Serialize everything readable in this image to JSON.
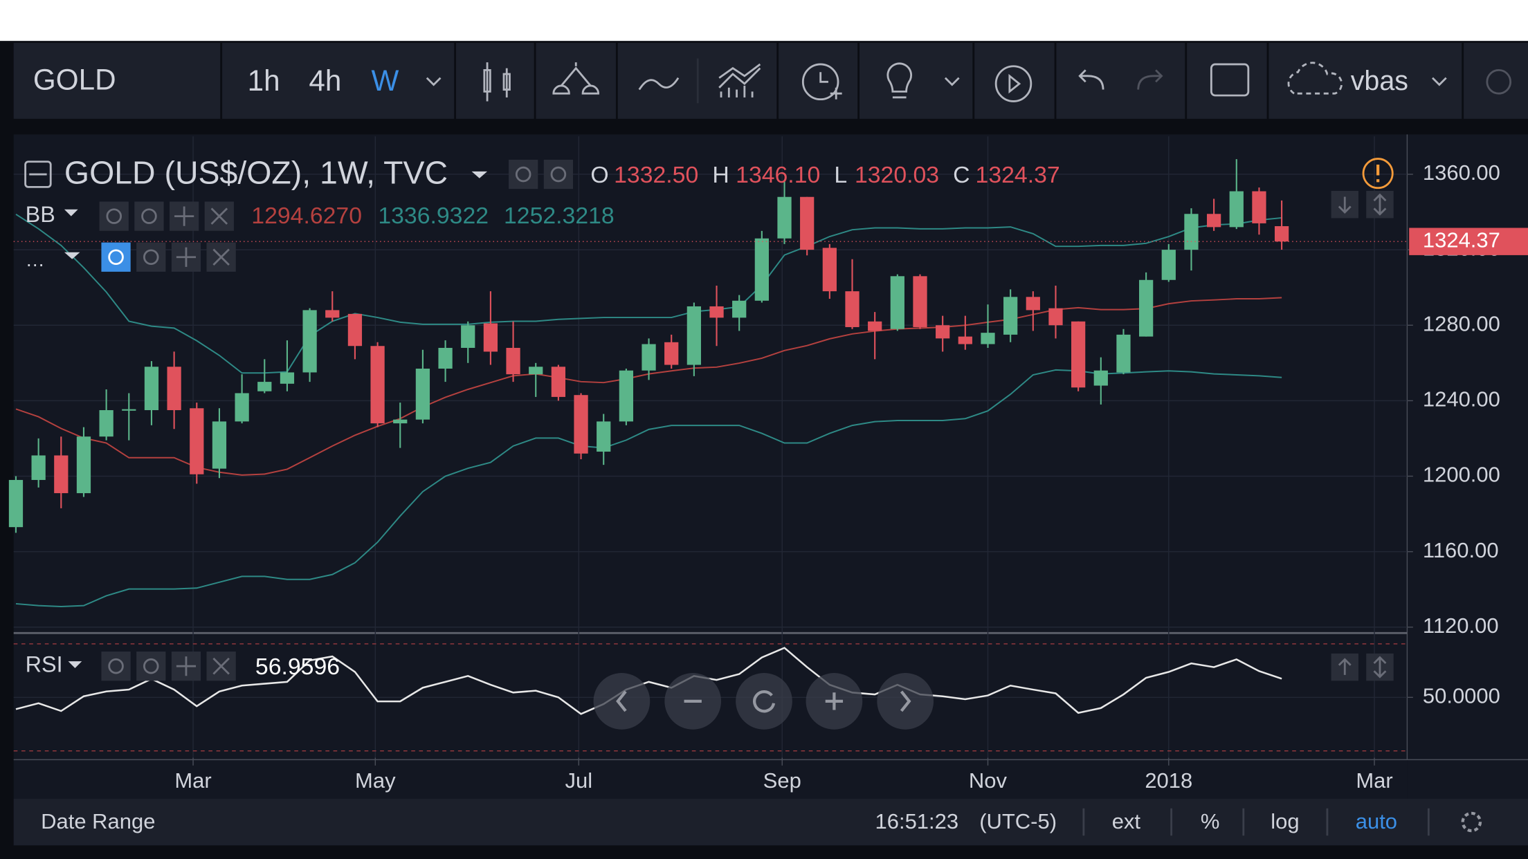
{
  "toolbar": {
    "symbol": "GOLD",
    "intervals": [
      "1h",
      "4h",
      "W"
    ],
    "layout_name": "vbas"
  },
  "footer": {
    "date_range": "Date Range",
    "time": "16:51:23",
    "timezone": "(UTC-5)",
    "ext": "ext",
    "percent": "%",
    "log": "log",
    "auto": "auto"
  },
  "chart_data": [
    {
      "type": "candlestick",
      "title": "GOLD (US$/OZ), 1W, TVC",
      "ohlc_legend": [
        {
          "key": "O",
          "value": "1332.50"
        },
        {
          "key": "H",
          "value": "1346.10"
        },
        {
          "key": "L",
          "value": "1320.03"
        },
        {
          "key": "C",
          "value": "1324.37"
        }
      ],
      "last_price_label": "1324.37",
      "up_color": "#5bb58a",
      "down_color": "#e0525c",
      "x": [
        0,
        1,
        2,
        3,
        4,
        5,
        6,
        7,
        8,
        9,
        10,
        11,
        12,
        13,
        14,
        15,
        16,
        17,
        18,
        19,
        20,
        21,
        22,
        23,
        24,
        25,
        26,
        27,
        28,
        29,
        30,
        31,
        32,
        33,
        34,
        35,
        36,
        37,
        38,
        39,
        40,
        41,
        42,
        43,
        44,
        45,
        46,
        47,
        48,
        49,
        50,
        51,
        52,
        53,
        54,
        55,
        56
      ],
      "open": [
        1173,
        1198,
        1211,
        1191,
        1221,
        1235,
        1235,
        1258,
        1236,
        1204,
        1229,
        1245,
        1249,
        1255,
        1288,
        1286,
        1269,
        1228,
        1230,
        1257,
        1268,
        1281,
        1268,
        1254,
        1258,
        1243,
        1213,
        1229,
        1256,
        1271,
        1259,
        1290,
        1284,
        1293,
        1326,
        1348,
        1321,
        1298,
        1282,
        1278,
        1306,
        1280,
        1274,
        1270,
        1275,
        1295,
        1289,
        1282,
        1248,
        1255,
        1274,
        1304,
        1320,
        1339,
        1332,
        1351,
        1332.5
      ],
      "high": [
        1200,
        1220,
        1221,
        1226,
        1246,
        1244,
        1261,
        1266,
        1239,
        1236,
        1254,
        1262,
        1272,
        1289,
        1298,
        1286,
        1271,
        1239,
        1267,
        1272,
        1282,
        1298,
        1282,
        1260,
        1259,
        1244,
        1233,
        1257,
        1273,
        1275,
        1292,
        1301,
        1296,
        1330,
        1357,
        1348,
        1323,
        1315,
        1287,
        1307,
        1307,
        1285,
        1285,
        1291,
        1299,
        1298,
        1301,
        1282,
        1263,
        1278,
        1308,
        1323,
        1342,
        1347,
        1368,
        1353,
        1346.1
      ],
      "low": [
        1170,
        1194,
        1183,
        1189,
        1219,
        1219,
        1227,
        1225,
        1196,
        1199,
        1228,
        1244,
        1245,
        1250,
        1282,
        1262,
        1226,
        1215,
        1228,
        1250,
        1260,
        1259,
        1250,
        1242,
        1240,
        1209,
        1206,
        1227,
        1251,
        1257,
        1253,
        1269,
        1277,
        1292,
        1323,
        1317,
        1294,
        1278,
        1262,
        1277,
        1278,
        1266,
        1267,
        1268,
        1271,
        1277,
        1273,
        1245,
        1238,
        1254,
        1274,
        1303,
        1309,
        1330,
        1331,
        1328,
        1320.03
      ],
      "close": [
        1198,
        1211,
        1191,
        1221,
        1235,
        1235.5,
        1258,
        1235,
        1201,
        1229,
        1244,
        1250,
        1255,
        1288,
        1284,
        1269,
        1228,
        1230,
        1257,
        1268,
        1280,
        1266,
        1254,
        1258,
        1242,
        1212,
        1229,
        1256,
        1270,
        1259,
        1290,
        1284,
        1293,
        1326,
        1348,
        1320,
        1298,
        1279,
        1277,
        1306,
        1279,
        1273,
        1270,
        1276,
        1295,
        1288,
        1280,
        1247,
        1256,
        1275,
        1304,
        1320,
        1339,
        1332,
        1351,
        1334,
        1324.37
      ],
      "bb": {
        "label": "BB",
        "value_labels": [
          "1294.6270",
          "1336.9322",
          "1252.3218"
        ],
        "series": [
          {
            "color": "#b5413f",
            "values": [
              1235.6,
              1231.5,
              1225.3,
              1220.2,
              1217.6,
              1209.8,
              1209.8,
              1209.8,
              1204.7,
              1202.1,
              1200.6,
              1201.1,
              1203.7,
              1209.8,
              1216,
              1221.7,
              1226.4,
              1230.5,
              1236.7,
              1241.8,
              1246,
              1249.6,
              1253.2,
              1254.2,
              1252.2,
              1250.1,
              1249.6,
              1251.6,
              1254.2,
              1255.8,
              1257.3,
              1257.8,
              1259.9,
              1262.5,
              1266.6,
              1269.2,
              1272.8,
              1275.4,
              1276.9,
              1278,
              1278.5,
              1279,
              1280,
              1281.6,
              1283.1,
              1285.7,
              1288.3,
              1289.3,
              1288.3,
              1288.3,
              1288.8,
              1291.4,
              1292.9,
              1293.4,
              1294,
              1294,
              1294.627
            ]
          },
          {
            "color": "#2e8a86",
            "values": [
              1338.8,
              1331.1,
              1322.3,
              1310.5,
              1297.6,
              1282.1,
              1279.5,
              1278.5,
              1271.8,
              1264,
              1254.7,
              1254.7,
              1255.3,
              1274.4,
              1282.1,
              1286.2,
              1284.1,
              1281.6,
              1280.5,
              1280.5,
              1280.5,
              1281.6,
              1282.1,
              1282.1,
              1283.1,
              1283.6,
              1284.1,
              1284.1,
              1284.1,
              1284.1,
              1287.2,
              1288.3,
              1289.8,
              1301.2,
              1317.2,
              1321.8,
              1327,
              1330.6,
              1331.6,
              1331.6,
              1331.1,
              1331.1,
              1331.6,
              1331.6,
              1332.1,
              1328.5,
              1321.8,
              1321.8,
              1322.3,
              1322.3,
              1323.4,
              1327,
              1331.6,
              1333.2,
              1333.7,
              1335.7,
              1336.9322
            ]
          },
          {
            "color": "#2e8a86",
            "values": [
              1132.4,
              1131.4,
              1130.9,
              1131.4,
              1136.6,
              1140.2,
              1140.2,
              1140.2,
              1140.7,
              1143.8,
              1146.9,
              1146.9,
              1145.3,
              1145.3,
              1147.9,
              1154.1,
              1165,
              1178.9,
              1191.8,
              1200,
              1204.2,
              1207.3,
              1216,
              1220.2,
              1220.2,
              1216,
              1215,
              1219.1,
              1224.8,
              1226.9,
              1226.9,
              1226.9,
              1226.9,
              1222.7,
              1217.6,
              1217.6,
              1222.7,
              1226.9,
              1228.9,
              1229.5,
              1229.5,
              1229.5,
              1230.5,
              1234.6,
              1243.4,
              1253.7,
              1256.3,
              1255.8,
              1254.2,
              1254.7,
              1255.3,
              1255.8,
              1255.3,
              1254.2,
              1253.7,
              1253.2,
              1252.3218
            ]
          }
        ]
      },
      "xlim": [
        -0.1,
        61.55
      ],
      "xticks": [
        {
          "value": 7.84,
          "label": "Mar"
        },
        {
          "value": 15.9,
          "label": "May"
        },
        {
          "value": 24.9,
          "label": "Jul"
        },
        {
          "value": 33.9,
          "label": "Sep"
        },
        {
          "value": 43,
          "label": "Nov"
        },
        {
          "value": 51,
          "label": "2018"
        },
        {
          "value": 60.1,
          "label": "Mar"
        }
      ],
      "ylim": [
        1117.9,
        1380.1
      ],
      "yticks": [
        {
          "value": 1120,
          "label": "1120.00"
        },
        {
          "value": 1160,
          "label": "1160.00"
        },
        {
          "value": 1200,
          "label": "1200.00"
        },
        {
          "value": 1240,
          "label": "1240.00"
        },
        {
          "value": 1280,
          "label": "1280.00"
        },
        {
          "value": 1320,
          "label": "1320.00"
        },
        {
          "value": 1360,
          "label": "1360.00"
        }
      ],
      "grid": true
    },
    {
      "type": "line",
      "title": "RSI",
      "value_label": "56.9596",
      "color": "#e8e8e8",
      "values": [
        45.6,
        47.8,
        44.9,
        50.4,
        52.2,
        52.9,
        56.9,
        52.9,
        46.7,
        52.2,
        54.4,
        55.1,
        55.8,
        63.8,
        65.3,
        59.5,
        48.5,
        48.5,
        53.6,
        55.8,
        58,
        54.7,
        51.8,
        52.5,
        50,
        43.8,
        47.5,
        52.9,
        55.8,
        53.6,
        58,
        56.5,
        58.7,
        64.9,
        68.5,
        61.3,
        54.7,
        51.8,
        51.1,
        54.7,
        51.1,
        50.4,
        49.3,
        50.7,
        54.4,
        52.9,
        51.5,
        44.2,
        46,
        51.1,
        57.3,
        59.5,
        62.7,
        61.3,
        64.2,
        59.8,
        56.9596
      ],
      "levels": [
        70,
        30
      ],
      "ylim": [
        27.45,
        73.3
      ],
      "yticks": [
        {
          "value": 50,
          "label": "50.0000"
        }
      ],
      "grid": true
    }
  ]
}
